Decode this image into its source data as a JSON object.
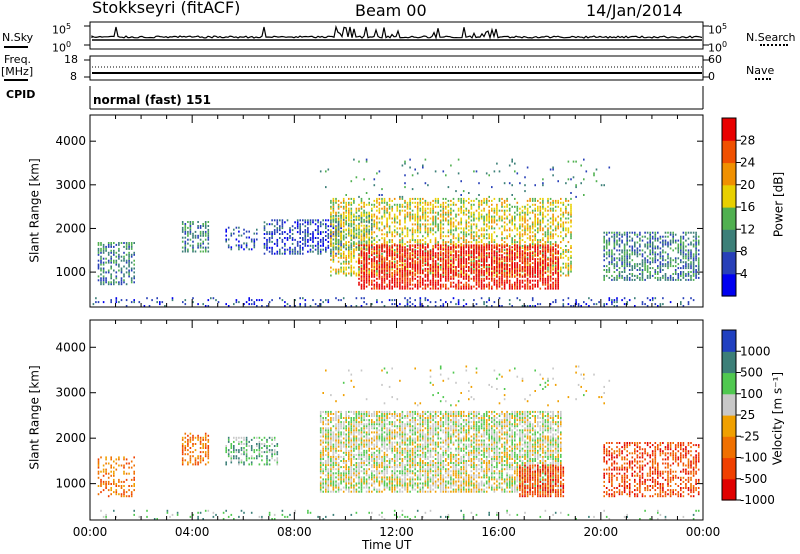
{
  "header": {
    "station": "Stokkseyri (fitACF)",
    "beam": "Beam 00",
    "date": "14/Jan/2014"
  },
  "nsky_panel": {
    "left_label": "N.Sky",
    "left_ticks": [
      "10^5",
      "10^0"
    ],
    "right_label": "N.Search",
    "right_ticks": [
      "10^5",
      "10^0"
    ]
  },
  "freq_panel": {
    "left_label_1": "Freq.",
    "left_label_2": "[MHz]",
    "left_ticks": [
      "18",
      "8"
    ],
    "right_label": "Nave",
    "right_ticks": [
      "60",
      "0"
    ]
  },
  "cpid_panel": {
    "label": "CPID",
    "program": "normal (fast) 151"
  },
  "chart_data": [
    {
      "type": "heatmap",
      "name": "power",
      "ylabel": "Slant Range [km]",
      "yticks": [
        1000,
        2000,
        3000,
        4000
      ],
      "ylim": [
        200,
        4600
      ],
      "xlim": [
        0,
        24
      ],
      "colorbar": {
        "label": "Power [dB]",
        "ticks": [
          "4",
          "8",
          "12",
          "16",
          "20",
          "24",
          "28"
        ],
        "colors": [
          "#0000f0",
          "#2840b8",
          "#3c7f78",
          "#50b050",
          "#e8d000",
          "#f09000",
          "#f05000",
          "#e80000"
        ]
      },
      "regions": [
        {
          "t0": 0.0,
          "t1": 24.0,
          "r0": 200,
          "r1": 420,
          "level": 1,
          "density": 0.22
        },
        {
          "t0": 0.3,
          "t1": 1.8,
          "r0": 700,
          "r1": 1650,
          "level": 2,
          "density": 0.55
        },
        {
          "t0": 3.6,
          "t1": 4.6,
          "r0": 1450,
          "r1": 2150,
          "level": 2,
          "density": 0.55
        },
        {
          "t0": 5.3,
          "t1": 6.5,
          "r0": 1500,
          "r1": 2000,
          "level": 1,
          "density": 0.35
        },
        {
          "t0": 6.8,
          "t1": 9.8,
          "r0": 1400,
          "r1": 2200,
          "level": 1,
          "density": 0.55
        },
        {
          "t0": 9.4,
          "t1": 18.9,
          "r0": 900,
          "r1": 2700,
          "level": 4,
          "density": 0.55
        },
        {
          "t0": 10.5,
          "t1": 18.4,
          "r0": 600,
          "r1": 1600,
          "level": 7,
          "density": 0.75
        },
        {
          "t0": 9.5,
          "t1": 11.0,
          "r0": 1500,
          "r1": 2300,
          "level": 3,
          "density": 0.55
        },
        {
          "t0": 20.1,
          "t1": 23.9,
          "r0": 800,
          "r1": 1900,
          "level": 2,
          "density": 0.6
        },
        {
          "t0": 9.0,
          "t1": 20.5,
          "r0": 2700,
          "r1": 3600,
          "level": 2,
          "density": 0.05
        }
      ]
    },
    {
      "type": "heatmap",
      "name": "velocity",
      "ylabel": "Slant Range [km]",
      "yticks": [
        1000,
        2000,
        3000,
        4000
      ],
      "ylim": [
        200,
        4600
      ],
      "xlim": [
        0,
        24
      ],
      "xlabel": "Time UT",
      "xticks": [
        "00:00",
        "04:00",
        "08:00",
        "12:00",
        "16:00",
        "20:00",
        "00:00"
      ],
      "colorbar": {
        "label": "Velocity [m s⁻¹]",
        "ticks": [
          "1000",
          "500",
          "100",
          "25",
          "-25",
          "-100",
          "-500",
          "-1000"
        ],
        "colors": [
          "#2040c0",
          "#3c7f78",
          "#50c850",
          "#c8c8c8",
          "#f0a000",
          "#f07000",
          "#f04000",
          "#e00000"
        ]
      },
      "regions": [
        {
          "t0": 0.0,
          "t1": 24.0,
          "r0": 200,
          "r1": 420,
          "level": 2,
          "density": 0.12
        },
        {
          "t0": 0.3,
          "t1": 1.8,
          "r0": 700,
          "r1": 1600,
          "level": 5,
          "density": 0.45
        },
        {
          "t0": 3.6,
          "t1": 4.6,
          "r0": 1400,
          "r1": 2100,
          "level": 5,
          "density": 0.55
        },
        {
          "t0": 5.3,
          "t1": 7.3,
          "r0": 1400,
          "r1": 2000,
          "level": 2,
          "density": 0.5
        },
        {
          "t0": 9.0,
          "t1": 18.5,
          "r0": 800,
          "r1": 2600,
          "level": 3,
          "density": 0.8
        },
        {
          "t0": 16.8,
          "t1": 18.6,
          "r0": 700,
          "r1": 1400,
          "level": 6,
          "density": 0.8
        },
        {
          "t0": 20.1,
          "t1": 23.9,
          "r0": 700,
          "r1": 1900,
          "level": 6,
          "density": 0.55
        },
        {
          "t0": 9.0,
          "t1": 20.5,
          "r0": 2700,
          "r1": 3600,
          "level": 3,
          "density": 0.04
        }
      ]
    }
  ]
}
